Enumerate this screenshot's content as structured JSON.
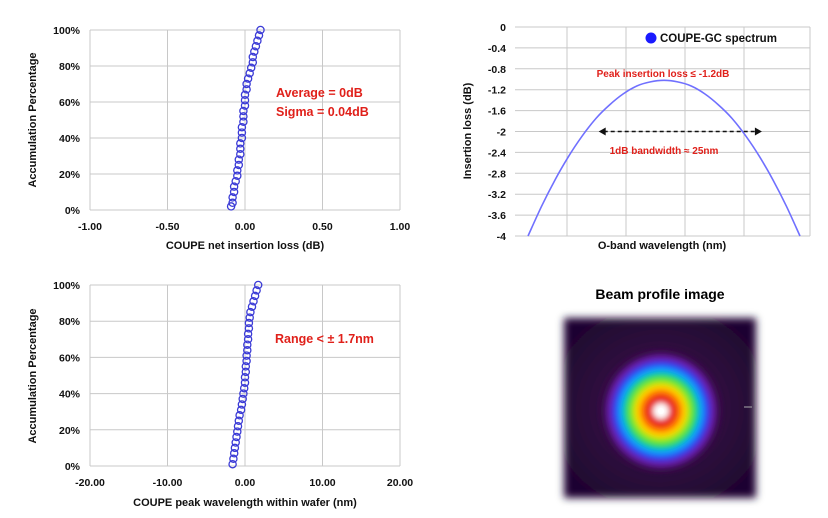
{
  "chart_data": [
    {
      "type": "scatter",
      "id": "c1",
      "title": "",
      "xlabel": "COUPE net insertion loss (dB)",
      "ylabel": "Accumulation Percentage",
      "xlim": [
        -1.0,
        1.0
      ],
      "ylim": [
        0,
        100
      ],
      "x_ticks": [
        "-1.00",
        "-0.50",
        "0.00",
        "0.50",
        "1.00"
      ],
      "y_ticks": [
        "0%",
        "20%",
        "40%",
        "60%",
        "80%",
        "100%"
      ],
      "grid": true,
      "annotations": [
        "Average = 0dB",
        "Sigma = 0.04dB"
      ],
      "points": [
        [
          -0.09,
          2
        ],
        [
          -0.08,
          4
        ],
        [
          -0.08,
          7
        ],
        [
          -0.07,
          10
        ],
        [
          -0.07,
          13
        ],
        [
          -0.06,
          16
        ],
        [
          -0.05,
          19
        ],
        [
          -0.05,
          22
        ],
        [
          -0.04,
          25
        ],
        [
          -0.04,
          28
        ],
        [
          -0.03,
          31
        ],
        [
          -0.03,
          34
        ],
        [
          -0.03,
          37
        ],
        [
          -0.02,
          40
        ],
        [
          -0.02,
          43
        ],
        [
          -0.02,
          46
        ],
        [
          -0.01,
          49
        ],
        [
          -0.01,
          52
        ],
        [
          -0.01,
          55
        ],
        [
          0.0,
          58
        ],
        [
          0.0,
          61
        ],
        [
          0.0,
          64
        ],
        [
          0.01,
          67
        ],
        [
          0.01,
          70
        ],
        [
          0.02,
          73
        ],
        [
          0.03,
          76
        ],
        [
          0.04,
          79
        ],
        [
          0.05,
          82
        ],
        [
          0.05,
          85
        ],
        [
          0.06,
          88
        ],
        [
          0.07,
          91
        ],
        [
          0.08,
          94
        ],
        [
          0.09,
          97
        ],
        [
          0.1,
          100
        ]
      ]
    },
    {
      "type": "line",
      "id": "c2",
      "title": "",
      "xlabel": "O-band wavelength (nm)",
      "ylabel": "Insertion loss (dB)",
      "ylim": [
        -4,
        0
      ],
      "y_ticks": [
        "0",
        "-0.4",
        "-0.8",
        "-1.2",
        "-1.6",
        "-2",
        "-2.4",
        "-2.8",
        "-3.2",
        "-3.6",
        "-4"
      ],
      "grid": true,
      "legend": "COUPE-GC spectrum",
      "legend_position": "top-right",
      "annotations": [
        "Peak insertion loss ≤ -1.2dB",
        "1dB bandwidth ≈ 25nm"
      ],
      "series": [
        {
          "name": "COUPE-GC spectrum",
          "color": "#7070ff",
          "x": [
            0.0,
            0.05,
            0.1,
            0.15,
            0.2,
            0.25,
            0.3,
            0.35,
            0.4,
            0.45,
            0.5,
            0.55,
            0.6,
            0.65,
            0.7,
            0.75,
            0.8,
            0.85,
            0.9,
            0.95,
            1.0
          ],
          "y": [
            -4.0,
            -3.43,
            -2.92,
            -2.47,
            -2.08,
            -1.75,
            -1.49,
            -1.28,
            -1.13,
            -1.05,
            -1.02,
            -1.05,
            -1.13,
            -1.28,
            -1.49,
            -1.75,
            -2.08,
            -2.47,
            -2.92,
            -3.43,
            -4.0
          ]
        }
      ],
      "bandwidth_arrow": {
        "y": -2.0,
        "x_start": 0.26,
        "x_end": 0.86
      }
    },
    {
      "type": "scatter",
      "id": "c3",
      "title": "",
      "xlabel": "COUPE peak wavelength within wafer (nm)",
      "ylabel": "Accumulation Percentage",
      "xlim": [
        -20.0,
        20.0
      ],
      "ylim": [
        0,
        100
      ],
      "x_ticks": [
        "-20.00",
        "-10.00",
        "0.00",
        "10.00",
        "20.00"
      ],
      "y_ticks": [
        "0%",
        "20%",
        "40%",
        "60%",
        "80%",
        "100%"
      ],
      "grid": true,
      "annotations": [
        "Range < ± 1.7nm"
      ],
      "points": [
        [
          -1.6,
          1
        ],
        [
          -1.5,
          4
        ],
        [
          -1.4,
          7
        ],
        [
          -1.3,
          10
        ],
        [
          -1.2,
          13
        ],
        [
          -1.1,
          16
        ],
        [
          -1.0,
          19
        ],
        [
          -0.9,
          22
        ],
        [
          -0.8,
          25
        ],
        [
          -0.7,
          28
        ],
        [
          -0.5,
          31
        ],
        [
          -0.4,
          34
        ],
        [
          -0.3,
          37
        ],
        [
          -0.2,
          40
        ],
        [
          -0.1,
          43
        ],
        [
          0.0,
          46
        ],
        [
          0.0,
          49
        ],
        [
          0.1,
          52
        ],
        [
          0.1,
          55
        ],
        [
          0.2,
          58
        ],
        [
          0.2,
          61
        ],
        [
          0.3,
          64
        ],
        [
          0.3,
          67
        ],
        [
          0.4,
          70
        ],
        [
          0.4,
          73
        ],
        [
          0.5,
          76
        ],
        [
          0.5,
          79
        ],
        [
          0.6,
          82
        ],
        [
          0.7,
          85
        ],
        [
          0.9,
          88
        ],
        [
          1.1,
          91
        ],
        [
          1.3,
          94
        ],
        [
          1.5,
          97
        ],
        [
          1.7,
          100
        ]
      ]
    }
  ],
  "beam": {
    "title": "Beam profile image",
    "rings": [
      "#e61a1a",
      "#ff6a00",
      "#ffd400",
      "#7dea12",
      "#0fd56a",
      "#0a9bff",
      "#2a3cf0",
      "#6a1aa8",
      "#3a0c4e"
    ],
    "center": "#ffffff"
  }
}
